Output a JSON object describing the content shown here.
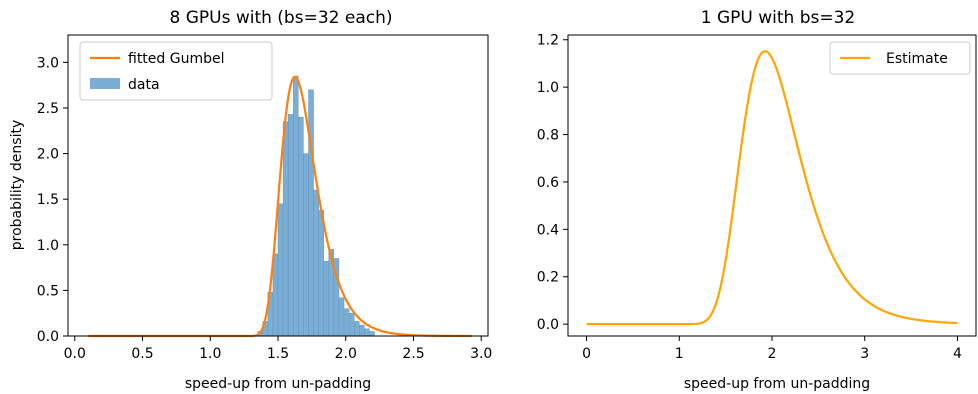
{
  "chart_data": [
    {
      "type": "bar",
      "title": "8 GPUs with (bs=32 each)",
      "xlabel": "speed-up from un-padding",
      "ylabel": "probability density",
      "xlim": [
        -0.05,
        3.05
      ],
      "ylim": [
        0,
        3.3
      ],
      "xticks": [
        "0.0",
        "0.5",
        "1.0",
        "1.5",
        "2.0",
        "2.5",
        "3.0"
      ],
      "yticks": [
        "0.0",
        "0.5",
        "1.0",
        "1.5",
        "2.0",
        "2.5",
        "3.0"
      ],
      "legend_position": "upper-left",
      "histogram": {
        "name": "data",
        "color": "#7aaed4",
        "edge_color": "#5a90bd",
        "bin_width": 0.0375,
        "bins": [
          {
            "x": 1.35,
            "h": 0.05
          },
          {
            "x": 1.3875,
            "h": 0.16
          },
          {
            "x": 1.425,
            "h": 0.48
          },
          {
            "x": 1.4625,
            "h": 0.9
          },
          {
            "x": 1.5,
            "h": 1.45
          },
          {
            "x": 1.5375,
            "h": 2.35
          },
          {
            "x": 1.575,
            "h": 2.43
          },
          {
            "x": 1.6125,
            "h": 2.85
          },
          {
            "x": 1.65,
            "h": 2.4
          },
          {
            "x": 1.6875,
            "h": 2.0
          },
          {
            "x": 1.725,
            "h": 2.7
          },
          {
            "x": 1.7625,
            "h": 1.6
          },
          {
            "x": 1.8,
            "h": 1.38
          },
          {
            "x": 1.8375,
            "h": 0.82
          },
          {
            "x": 1.875,
            "h": 0.95
          },
          {
            "x": 1.9125,
            "h": 0.85
          },
          {
            "x": 1.95,
            "h": 0.42
          },
          {
            "x": 1.9875,
            "h": 0.3
          },
          {
            "x": 2.025,
            "h": 0.25
          },
          {
            "x": 2.0625,
            "h": 0.16
          },
          {
            "x": 2.1,
            "h": 0.12
          },
          {
            "x": 2.1375,
            "h": 0.08
          },
          {
            "x": 2.175,
            "h": 0.05
          }
        ]
      },
      "fit": {
        "name": "fitted Gumbel",
        "color": "#ff7f0e",
        "model": "gumbel_r",
        "loc": 1.625,
        "scale": 0.1295,
        "x_range": [
          0.1,
          2.93
        ]
      }
    },
    {
      "type": "line",
      "title": "1 GPU with bs=32",
      "xlabel": "speed-up from un-padding",
      "xlim": [
        -0.2,
        4.2
      ],
      "ylim": [
        -0.05,
        1.22
      ],
      "xticks": [
        "0",
        "1",
        "2",
        "3",
        "4"
      ],
      "yticks": [
        "0.0",
        "0.2",
        "0.4",
        "0.6",
        "0.8",
        "1.0",
        "1.2"
      ],
      "legend_position": "upper-right",
      "series": [
        {
          "name": "Estimate",
          "color": "#ffa500",
          "model": "gumbel_r",
          "loc": 1.925,
          "scale": 0.3195,
          "x_range": [
            0,
            4
          ]
        }
      ]
    }
  ]
}
